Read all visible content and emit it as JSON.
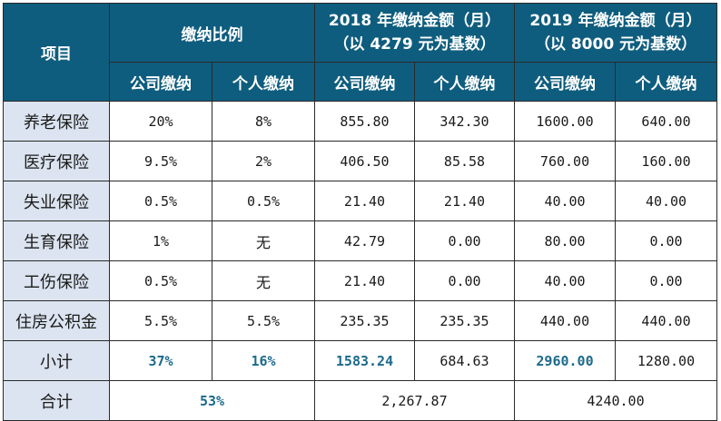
{
  "header": {
    "item": "项目",
    "ratio_group": "缴纳比例",
    "y2018_line1": "2018 年缴纳金额（月）",
    "y2018_line2": "（以 4279 元为基数）",
    "y2019_line1": "2019 年缴纳金额（月）",
    "y2019_line2": "（以 8000 元为基数）",
    "company": "公司缴纳",
    "personal": "个人缴纳"
  },
  "rows": [
    {
      "name": "养老保险",
      "ratio_company": "20%",
      "ratio_personal": "8%",
      "y2018_company": "855.80",
      "y2018_personal": "342.30",
      "y2019_company": "1600.00",
      "y2019_personal": "640.00"
    },
    {
      "name": "医疗保险",
      "ratio_company": "9.5%",
      "ratio_personal": "2%",
      "y2018_company": "406.50",
      "y2018_personal": "85.58",
      "y2019_company": "760.00",
      "y2019_personal": "160.00"
    },
    {
      "name": "失业保险",
      "ratio_company": "0.5%",
      "ratio_personal": "0.5%",
      "y2018_company": "21.40",
      "y2018_personal": "21.40",
      "y2019_company": "40.00",
      "y2019_personal": "40.00"
    },
    {
      "name": "生育保险",
      "ratio_company": "1%",
      "ratio_personal": "无",
      "y2018_company": "42.79",
      "y2018_personal": "0.00",
      "y2019_company": "80.00",
      "y2019_personal": "0.00"
    },
    {
      "name": "工伤保险",
      "ratio_company": "0.5%",
      "ratio_personal": "无",
      "y2018_company": "21.40",
      "y2018_personal": "0.00",
      "y2019_company": "40.00",
      "y2019_personal": "0.00"
    },
    {
      "name": "住房公积金",
      "ratio_company": "5.5%",
      "ratio_personal": "5.5%",
      "y2018_company": "235.35",
      "y2018_personal": "235.35",
      "y2019_company": "440.00",
      "y2019_personal": "440.00"
    }
  ],
  "subtotal": {
    "name": "小计",
    "ratio_company": "37%",
    "ratio_personal": "16%",
    "y2018_company": "1583.24",
    "y2018_personal": "684.63",
    "y2019_company": "2960.00",
    "y2019_personal": "1280.00"
  },
  "total": {
    "name": "合计",
    "ratio": "53%",
    "y2018": "2,267.87",
    "y2019": "4240.00"
  },
  "colors": {
    "header_bg": "#0f5d7e",
    "label_bg": "#dbe4f0",
    "highlight_text": "#1c6a8c"
  }
}
